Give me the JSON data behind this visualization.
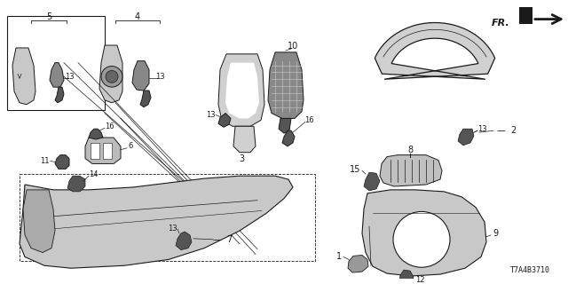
{
  "bg_color": "#ffffff",
  "diagram_id": "T7A4B3710",
  "line_color": "#1a1a1a",
  "fill_light": "#d8d8d8",
  "fill_dark": "#555555",
  "figsize": [
    6.4,
    3.2
  ],
  "dpi": 100
}
